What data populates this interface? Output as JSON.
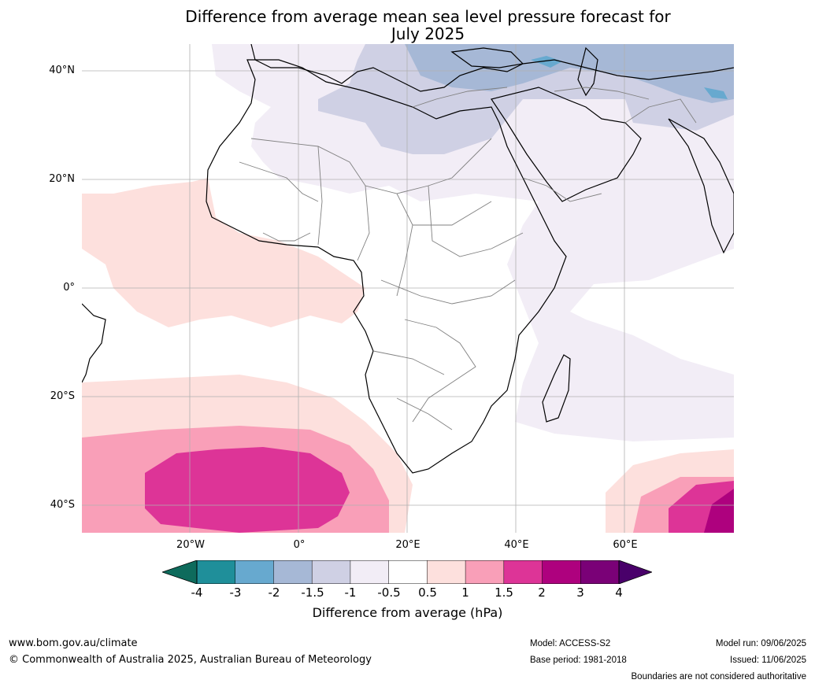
{
  "title": "Difference from average mean sea level pressure forecast for",
  "subtitle": "July 2025",
  "lat_labels": [
    "40°N",
    "20°N",
    "0°",
    "20°S",
    "40°S"
  ],
  "lon_labels": [
    "20°W",
    "0°",
    "20°E",
    "40°E",
    "60°E"
  ],
  "colorbar": {
    "ticks": [
      "-4",
      "-3",
      "-2",
      "-1.5",
      "-1",
      "-0.5",
      "0.5",
      "1",
      "1.5",
      "2",
      "3",
      "4"
    ],
    "label": "Difference from average (hPa)",
    "colors": [
      "#1a7e7e",
      "#1f8f9a",
      "#67a9cf",
      "#a6b8d6",
      "#cfd0e4",
      "#f2edf6",
      "#ffffff",
      "#fde0dd",
      "#f99fb8",
      "#dd3497",
      "#ae017e",
      "#7a0177",
      "#49006a"
    ],
    "under_color": "#0e6b5c",
    "over_color": "#49006a"
  },
  "footer": {
    "website": "www.bom.gov.au/climate",
    "copyright": "© Commonwealth of Australia 2025, Australian Bureau of Meteorology",
    "model": "Model: ACCESS-S2",
    "base_period": "Base period: 1981-2018",
    "model_run": "Model run: 09/06/2025",
    "issued": "Issued: 11/06/2025",
    "boundaries": "Boundaries are not considered authoritative"
  }
}
